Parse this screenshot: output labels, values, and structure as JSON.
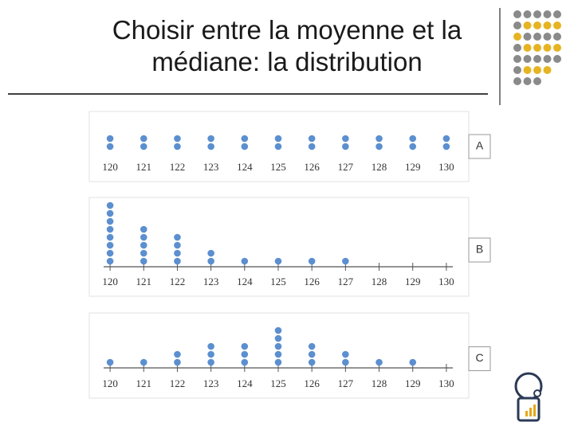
{
  "title": "Choisir entre la moyenne et la médiane: la distribution",
  "chart_data": [
    {
      "type": "dot",
      "label": "A",
      "color": "#5b8fd0",
      "axis_line": false,
      "x": [
        120,
        121,
        122,
        123,
        124,
        125,
        126,
        127,
        128,
        129,
        130
      ],
      "values": [
        2,
        2,
        2,
        2,
        2,
        2,
        2,
        2,
        2,
        2,
        2
      ],
      "xlim": [
        119.5,
        130.5
      ],
      "xticks": [
        120,
        121,
        122,
        123,
        124,
        125,
        126,
        127,
        128,
        129,
        130
      ]
    },
    {
      "type": "dot",
      "label": "B",
      "color": "#5b8fd0",
      "axis_line": true,
      "x": [
        120,
        121,
        122,
        123,
        124,
        125,
        126,
        127,
        128,
        129,
        130
      ],
      "values": [
        8,
        5,
        4,
        2,
        1,
        1,
        1,
        1,
        0,
        0,
        0
      ],
      "xlim": [
        119.5,
        130.5
      ],
      "xticks": [
        120,
        121,
        122,
        123,
        124,
        125,
        126,
        127,
        128,
        129,
        130
      ]
    },
    {
      "type": "dot",
      "label": "C",
      "color": "#5b8fd0",
      "axis_line": true,
      "x": [
        120,
        121,
        122,
        123,
        124,
        125,
        126,
        127,
        128,
        129,
        130
      ],
      "values": [
        1,
        1,
        2,
        3,
        3,
        5,
        3,
        2,
        1,
        1,
        0
      ],
      "xlim": [
        119.5,
        130.5
      ],
      "xticks": [
        120,
        121,
        122,
        123,
        124,
        125,
        126,
        127,
        128,
        129,
        130
      ]
    }
  ]
}
